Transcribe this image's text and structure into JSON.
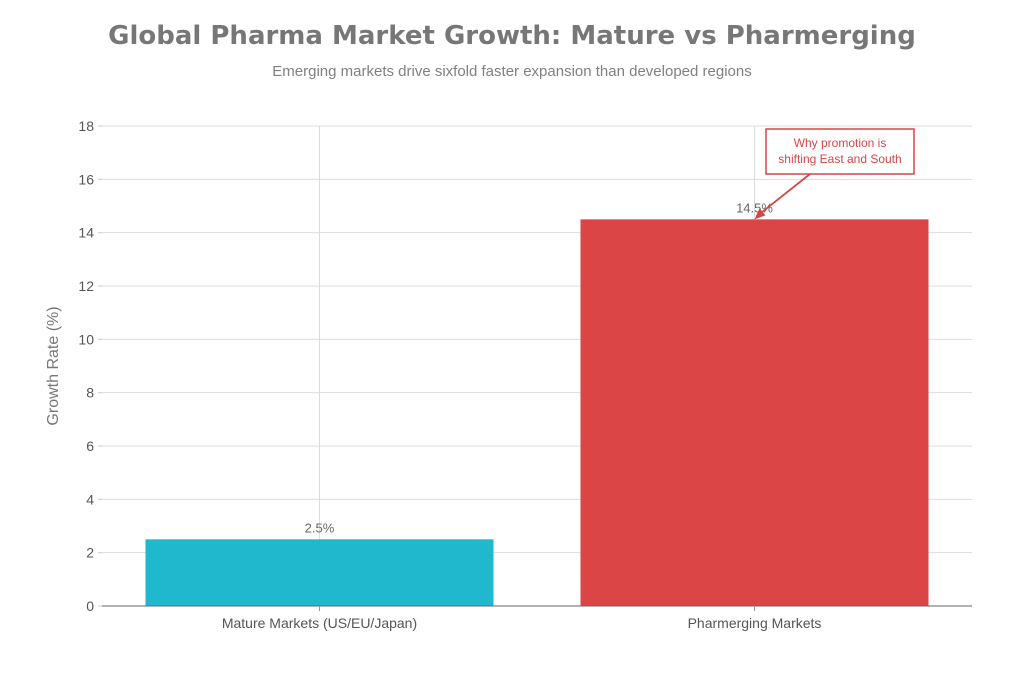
{
  "chart_data": {
    "type": "bar",
    "title": "Global Pharma Market Growth: Mature vs Pharmerging",
    "subtitle": "Emerging markets drive sixfold faster expansion than developed regions",
    "xlabel": "",
    "ylabel": "Growth Rate (%)",
    "ylim": [
      0,
      18
    ],
    "yticks": [
      0,
      2,
      4,
      6,
      8,
      10,
      12,
      14,
      16,
      18
    ],
    "categories": [
      "Mature Markets (US/EU/Japan)",
      "Pharmerging Markets"
    ],
    "values": [
      2.5,
      14.5
    ],
    "data_labels": [
      "2.5%",
      "14.5%"
    ],
    "colors": [
      "#1fb8cd",
      "#db4545"
    ],
    "grid": true,
    "annotation": {
      "lines": [
        "Why promotion is",
        "shifting East and South"
      ],
      "color": "#d64545",
      "target_category": 1
    }
  }
}
